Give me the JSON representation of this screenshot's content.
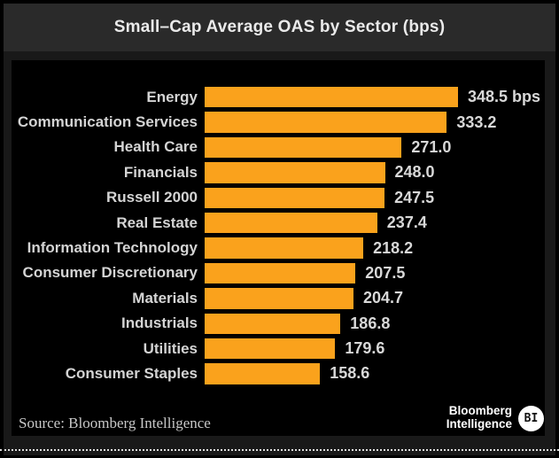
{
  "title_bar": {
    "title": "Small–Cap Average OAS by Sector (bps)"
  },
  "chart_data": {
    "type": "bar",
    "orientation": "horizontal",
    "title": "Small–Cap Average OAS by Sector (bps)",
    "categories": [
      "Energy",
      "Communication Services",
      "Health Care",
      "Financials",
      "Russell 2000",
      "Real Estate",
      "Information Technology",
      "Consumer Discretionary",
      "Materials",
      "Industrials",
      "Utilities",
      "Consumer Staples"
    ],
    "values": [
      348.5,
      333.2,
      271.0,
      248.0,
      247.5,
      237.4,
      218.2,
      207.5,
      204.7,
      186.8,
      179.6,
      158.6
    ],
    "value_labels": [
      "348.5 bps",
      "333.2",
      "271.0",
      "248.0",
      "247.5",
      "237.4",
      "218.2",
      "207.5",
      "204.7",
      "186.8",
      "179.6",
      "158.6"
    ],
    "unit": "bps",
    "xlim": [
      0,
      348.5
    ],
    "bar_color": "#faa21c",
    "background": "#000000",
    "grid": false,
    "legend": false
  },
  "footer": {
    "source": "Source: Bloomberg Intelligence"
  },
  "logo": {
    "line1": "Bloomberg",
    "line2": "Intelligence",
    "badge": "BI"
  },
  "colors": {
    "bar_orange": "#faa21c",
    "panel_black": "#000000",
    "outer_background": "#191919",
    "title_bar_background": "#2a2a2a",
    "label_gray": "#d4d4d4",
    "title_white": "#eaeaea"
  }
}
